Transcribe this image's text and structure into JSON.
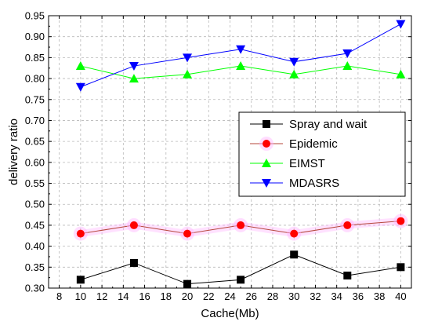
{
  "chart_data": {
    "type": "line",
    "xlabel": "Cache(Mb)",
    "ylabel": "delivery ratio",
    "xlim": [
      7,
      41
    ],
    "ylim": [
      0.3,
      0.95
    ],
    "x_ticks": [
      8,
      10,
      12,
      14,
      16,
      18,
      20,
      22,
      24,
      26,
      28,
      30,
      32,
      34,
      36,
      38,
      40
    ],
    "y_ticks": [
      0.3,
      0.35,
      0.4,
      0.45,
      0.5,
      0.55,
      0.6,
      0.65,
      0.7,
      0.75,
      0.8,
      0.85,
      0.9,
      0.95
    ],
    "grid": true,
    "legend_position": "right",
    "x": [
      10,
      15,
      20,
      25,
      30,
      35,
      40
    ],
    "series": [
      {
        "name": "Spray and wait",
        "values": [
          0.32,
          0.36,
          0.31,
          0.32,
          0.38,
          0.33,
          0.35
        ],
        "line_color": "#000000",
        "marker_color": "#000000",
        "marker": "square"
      },
      {
        "name": "Epidemic",
        "values": [
          0.43,
          0.45,
          0.43,
          0.45,
          0.43,
          0.45,
          0.46
        ],
        "line_color": "#b5473a",
        "marker_color": "#ff0000",
        "marker": "circle"
      },
      {
        "name": "EIMST",
        "values": [
          0.83,
          0.8,
          0.81,
          0.83,
          0.81,
          0.83,
          0.81
        ],
        "line_color": "#00ff00",
        "marker_color": "#00ff00",
        "marker": "triangle-up"
      },
      {
        "name": "MDASRS",
        "values": [
          0.78,
          0.83,
          0.85,
          0.87,
          0.84,
          0.86,
          0.93
        ],
        "line_color": "#0000ff",
        "marker_color": "#0000ff",
        "marker": "triangle-down"
      }
    ]
  }
}
